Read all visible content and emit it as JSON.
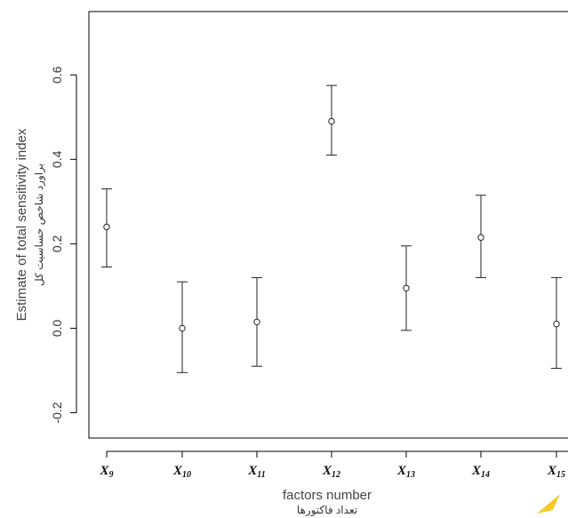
{
  "chart_data": {
    "type": "scatter",
    "subtype": "point-with-error-bars",
    "categories": [
      "X9",
      "X10",
      "X11",
      "X12",
      "X13",
      "X14",
      "X15"
    ],
    "category_labels": [
      {
        "base": "X",
        "sub": "9"
      },
      {
        "base": "X",
        "sub": "10"
      },
      {
        "base": "X",
        "sub": "11"
      },
      {
        "base": "X",
        "sub": "12"
      },
      {
        "base": "X",
        "sub": "13"
      },
      {
        "base": "X",
        "sub": "14"
      },
      {
        "base": "X",
        "sub": "15"
      }
    ],
    "values": [
      0.24,
      0.0,
      0.015,
      0.49,
      0.095,
      0.215,
      0.01
    ],
    "error_lower": [
      0.145,
      -0.105,
      -0.09,
      0.41,
      -0.005,
      0.12,
      -0.095
    ],
    "error_upper": [
      0.33,
      0.11,
      0.12,
      0.575,
      0.195,
      0.315,
      0.12
    ],
    "ylim": [
      -0.26,
      0.75
    ],
    "yticks": [
      -0.2,
      0.0,
      0.2,
      0.4,
      0.6
    ],
    "ytick_labels": [
      "-0.2",
      "0.0",
      "0.2",
      "0.4",
      "0.6"
    ],
    "xlabel": "factors number",
    "xlabel_alt": "تعداد فاکتورها",
    "ylabel": "Estimate of total sensitivity index",
    "ylabel_alt": "براورد شاخص حساسیت کل",
    "grid": false,
    "legend": "none",
    "colors": {
      "marks": "#222222",
      "axis": "#000000",
      "text": "#333333",
      "watermark": "#f5c200"
    }
  }
}
